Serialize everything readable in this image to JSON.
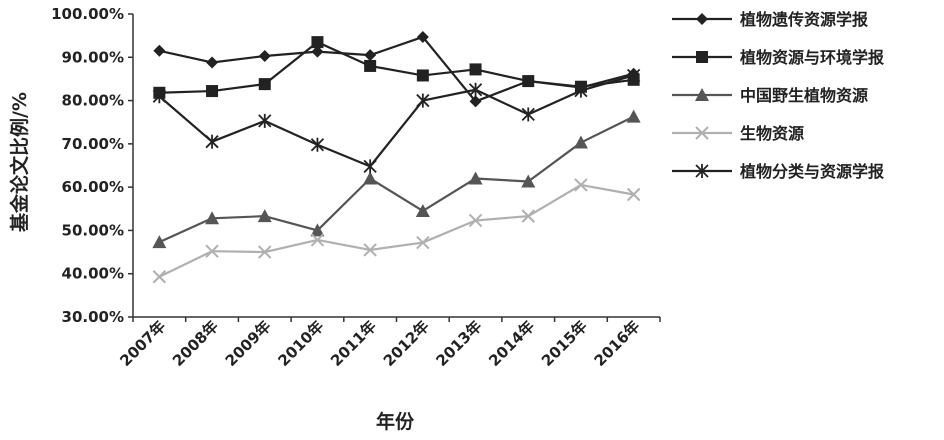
{
  "chart_data": {
    "type": "line",
    "categories": [
      "2007年",
      "2008年",
      "2009年",
      "2010年",
      "2011年",
      "2012年",
      "2013年",
      "2014年",
      "2015年",
      "2016年"
    ],
    "ylabel": "基金论文比例/%",
    "xlabel": "年份",
    "ylim": [
      30,
      100
    ],
    "yticks": [
      "30.00%",
      "40.00%",
      "50.00%",
      "60.00%",
      "70.00%",
      "80.00%",
      "90.00%",
      "100.00%"
    ],
    "grid": false,
    "legend_position": "right",
    "series": [
      {
        "name": "植物遗传资源学报",
        "marker": "diamond",
        "color": "#222222",
        "values": [
          91.5,
          88.8,
          90.3,
          91.3,
          90.5,
          94.7,
          79.8,
          84.5,
          83.0,
          86.2
        ]
      },
      {
        "name": "植物资源与环境学报",
        "marker": "square",
        "color": "#222222",
        "values": [
          81.8,
          82.2,
          83.8,
          93.5,
          88.0,
          85.8,
          87.2,
          84.5,
          83.2,
          84.8
        ]
      },
      {
        "name": "中国野生植物资源",
        "marker": "triangle",
        "color": "#555555",
        "values": [
          47.3,
          52.8,
          53.3,
          50.0,
          62.0,
          54.5,
          62.0,
          61.3,
          70.3,
          76.3
        ]
      },
      {
        "name": "生物资源",
        "marker": "x",
        "color": "#b0b0b0",
        "values": [
          39.3,
          45.2,
          45.0,
          47.8,
          45.5,
          47.2,
          52.3,
          53.3,
          60.5,
          58.3
        ]
      },
      {
        "name": "植物分类与资源学报",
        "marker": "asterisk",
        "color": "#222222",
        "values": [
          81.0,
          70.5,
          75.3,
          69.8,
          64.8,
          80.0,
          82.5,
          76.8,
          82.3,
          85.8
        ]
      }
    ]
  }
}
